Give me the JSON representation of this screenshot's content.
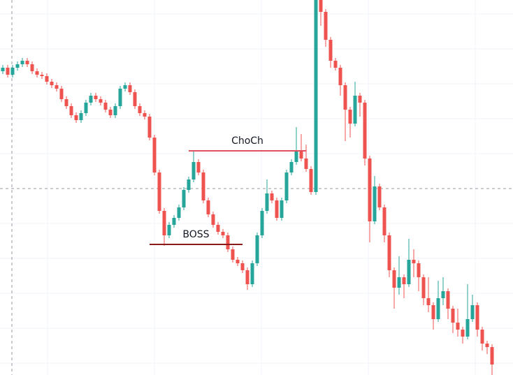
{
  "chart_data": {
    "type": "candlestick",
    "ylim": [
      0,
      537
    ],
    "colors": {
      "up": "#26a69a",
      "down": "#ef5350"
    },
    "ohlc": [
      [
        435,
        444,
        431,
        440
      ],
      [
        440,
        444,
        426,
        430
      ],
      [
        430,
        444,
        426,
        440
      ],
      [
        440,
        449,
        436,
        445
      ],
      [
        445,
        454,
        441,
        450
      ],
      [
        450,
        454,
        441,
        445
      ],
      [
        445,
        449,
        431,
        435
      ],
      [
        435,
        439,
        426,
        430
      ],
      [
        430,
        434,
        424,
        428
      ],
      [
        428,
        432,
        416,
        420
      ],
      [
        420,
        424,
        411,
        415
      ],
      [
        415,
        419,
        406,
        410
      ],
      [
        410,
        414,
        391,
        395
      ],
      [
        395,
        399,
        381,
        385
      ],
      [
        385,
        389,
        368,
        372
      ],
      [
        372,
        376,
        361,
        365
      ],
      [
        365,
        379,
        361,
        375
      ],
      [
        375,
        394,
        371,
        390
      ],
      [
        390,
        404,
        386,
        400
      ],
      [
        400,
        404,
        391,
        395
      ],
      [
        395,
        399,
        386,
        390
      ],
      [
        390,
        394,
        376,
        380
      ],
      [
        380,
        384,
        368,
        372
      ],
      [
        372,
        389,
        368,
        385
      ],
      [
        385,
        414,
        381,
        410
      ],
      [
        410,
        419,
        406,
        415
      ],
      [
        415,
        419,
        401,
        405
      ],
      [
        405,
        409,
        381,
        385
      ],
      [
        385,
        389,
        371,
        375
      ],
      [
        375,
        379,
        366,
        370
      ],
      [
        370,
        374,
        336,
        340
      ],
      [
        340,
        344,
        286,
        290
      ],
      [
        290,
        294,
        231,
        235
      ],
      [
        235,
        239,
        185,
        200
      ],
      [
        200,
        219,
        196,
        215
      ],
      [
        215,
        229,
        211,
        225
      ],
      [
        225,
        244,
        221,
        240
      ],
      [
        240,
        269,
        236,
        265
      ],
      [
        265,
        284,
        261,
        280
      ],
      [
        280,
        320,
        276,
        305
      ],
      [
        305,
        309,
        286,
        290
      ],
      [
        290,
        294,
        246,
        250
      ],
      [
        250,
        254,
        226,
        230
      ],
      [
        230,
        234,
        211,
        215
      ],
      [
        215,
        219,
        201,
        205
      ],
      [
        205,
        209,
        196,
        200
      ],
      [
        200,
        204,
        176,
        180
      ],
      [
        180,
        184,
        161,
        165
      ],
      [
        165,
        169,
        156,
        160
      ],
      [
        160,
        164,
        146,
        150
      ],
      [
        150,
        154,
        122,
        130
      ],
      [
        130,
        164,
        126,
        160
      ],
      [
        160,
        204,
        156,
        200
      ],
      [
        200,
        239,
        196,
        235
      ],
      [
        235,
        280,
        231,
        260
      ],
      [
        260,
        264,
        246,
        250
      ],
      [
        250,
        254,
        221,
        225
      ],
      [
        225,
        254,
        221,
        250
      ],
      [
        250,
        294,
        246,
        290
      ],
      [
        290,
        309,
        286,
        305
      ],
      [
        305,
        355,
        301,
        320
      ],
      [
        320,
        345,
        306,
        310
      ],
      [
        310,
        330,
        291,
        295
      ],
      [
        295,
        299,
        258,
        262
      ],
      [
        262,
        537,
        258,
        537
      ],
      [
        537,
        537,
        500,
        520
      ],
      [
        520,
        524,
        470,
        480
      ],
      [
        480,
        484,
        440,
        450
      ],
      [
        450,
        454,
        436,
        440
      ],
      [
        440,
        444,
        400,
        415
      ],
      [
        415,
        419,
        335,
        380
      ],
      [
        380,
        384,
        340,
        360
      ],
      [
        360,
        420,
        356,
        400
      ],
      [
        400,
        404,
        370,
        390
      ],
      [
        390,
        394,
        300,
        310
      ],
      [
        310,
        314,
        190,
        220
      ],
      [
        220,
        285,
        216,
        270
      ],
      [
        270,
        274,
        236,
        240
      ],
      [
        240,
        244,
        190,
        200
      ],
      [
        200,
        204,
        140,
        150
      ],
      [
        150,
        154,
        95,
        125
      ],
      [
        125,
        170,
        115,
        140
      ],
      [
        140,
        144,
        110,
        130
      ],
      [
        130,
        195,
        126,
        165
      ],
      [
        165,
        180,
        140,
        160
      ],
      [
        160,
        164,
        120,
        140
      ],
      [
        140,
        144,
        100,
        110
      ],
      [
        110,
        140,
        90,
        100
      ],
      [
        100,
        104,
        65,
        80
      ],
      [
        80,
        135,
        76,
        110
      ],
      [
        110,
        140,
        100,
        120
      ],
      [
        120,
        124,
        80,
        95
      ],
      [
        95,
        99,
        60,
        75
      ],
      [
        75,
        95,
        55,
        65
      ],
      [
        65,
        69,
        45,
        55
      ],
      [
        55,
        130,
        51,
        80
      ],
      [
        80,
        115,
        76,
        100
      ],
      [
        100,
        104,
        55,
        65
      ],
      [
        65,
        69,
        35,
        45
      ],
      [
        45,
        49,
        30,
        40
      ],
      [
        40,
        44,
        0,
        15
      ]
    ],
    "annotations": [
      {
        "text": "ChoCh",
        "level": 321,
        "start": 38,
        "end": 62,
        "color": "#e0505f"
      },
      {
        "text": "BOSS",
        "level": 187,
        "start": 30,
        "end": 49,
        "color": "#8b1a1a"
      }
    ]
  }
}
